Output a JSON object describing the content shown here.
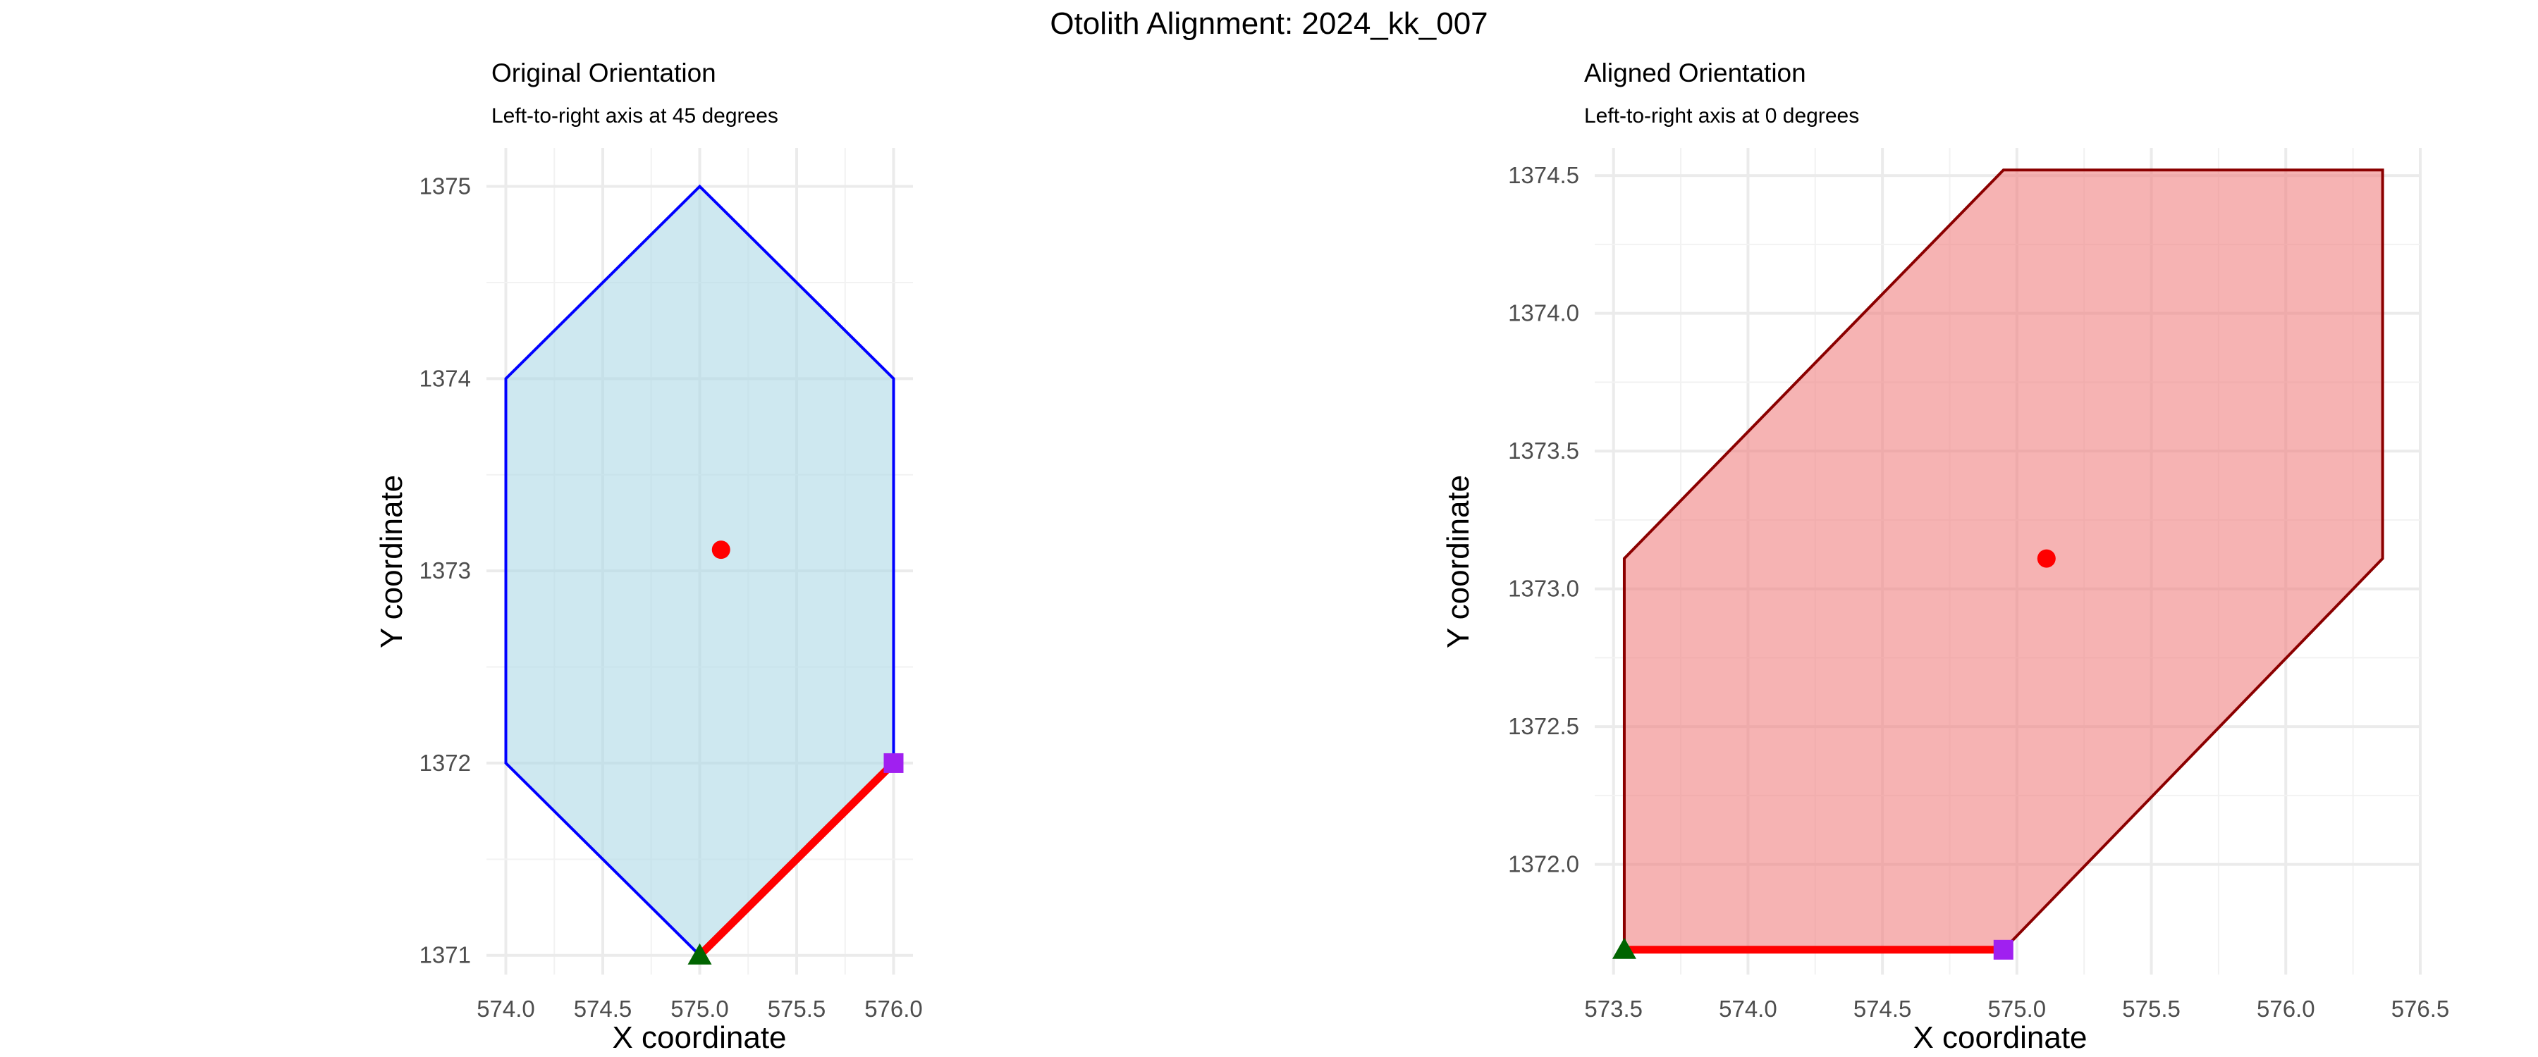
{
  "figure_title": "Otolith Alignment: 2024_kk_007",
  "chart_data": [
    {
      "type": "polygon",
      "title": "Original Orientation",
      "subtitle": "Left-to-right axis at 45 degrees",
      "xlabel": "X coordinate",
      "ylabel": "Y coordinate",
      "xlim": [
        573.9,
        576.1
      ],
      "ylim": [
        1370.9,
        1375.2
      ],
      "xticks": [
        574.0,
        574.5,
        575.0,
        575.5,
        576.0
      ],
      "xtick_labels": [
        "574.0",
        "574.5",
        "575.0",
        "575.5",
        "576.0"
      ],
      "yticks": [
        1371,
        1372,
        1373,
        1374,
        1375
      ],
      "ytick_labels": [
        "1371",
        "1372",
        "1373",
        "1374",
        "1375"
      ],
      "grid": true,
      "polygon": {
        "fill": "#add8e6",
        "fill_opacity": 0.6,
        "stroke": "#0000ff",
        "x": [
          575.0,
          576.0,
          576.0,
          575.0,
          574.0,
          574.0
        ],
        "y": [
          1371.0,
          1372.0,
          1374.0,
          1375.0,
          1374.0,
          1372.0
        ]
      },
      "axis_line": {
        "color": "#ff0000",
        "x": [
          575.0,
          576.0
        ],
        "y": [
          1371.0,
          1372.0
        ]
      },
      "centroid": {
        "color": "#ff0000",
        "x": 575.11,
        "y": 1373.11
      },
      "start_point": {
        "color": "#006400",
        "shape": "triangle",
        "x": 575.0,
        "y": 1371.0
      },
      "end_point": {
        "color": "#a020f0",
        "shape": "square",
        "x": 576.0,
        "y": 1372.0
      }
    },
    {
      "type": "polygon",
      "title": "Aligned Orientation",
      "subtitle": "Left-to-right axis at 0 degrees",
      "xlabel": "X coordinate",
      "ylabel": "Y coordinate",
      "xlim": [
        573.43,
        576.5
      ],
      "ylim": [
        1371.6,
        1374.6
      ],
      "xticks": [
        573.5,
        574.0,
        574.5,
        575.0,
        575.5,
        576.0,
        576.5
      ],
      "xtick_labels": [
        "573.5",
        "574.0",
        "574.5",
        "575.0",
        "575.5",
        "576.0",
        "576.5"
      ],
      "yticks": [
        1372.0,
        1372.5,
        1373.0,
        1373.5,
        1374.0,
        1374.5
      ],
      "ytick_labels": [
        "1372.0",
        "1372.5",
        "1373.0",
        "1373.5",
        "1374.0",
        "1374.5"
      ],
      "grid": true,
      "polygon": {
        "fill": "#f08080",
        "fill_opacity": 0.6,
        "stroke": "#8b0000",
        "x": [
          573.54,
          574.95,
          576.36,
          576.36,
          574.95,
          573.54
        ],
        "y": [
          1371.69,
          1371.69,
          1373.11,
          1374.52,
          1374.52,
          1373.11
        ]
      },
      "axis_line": {
        "color": "#ff0000",
        "x": [
          573.54,
          574.95
        ],
        "y": [
          1371.69,
          1371.69
        ]
      },
      "centroid": {
        "color": "#ff0000",
        "x": 575.11,
        "y": 1373.11
      },
      "start_point": {
        "color": "#006400",
        "shape": "triangle",
        "x": 573.54,
        "y": 1371.69
      },
      "end_point": {
        "color": "#a020f0",
        "shape": "square",
        "x": 574.95,
        "y": 1371.69
      }
    }
  ]
}
